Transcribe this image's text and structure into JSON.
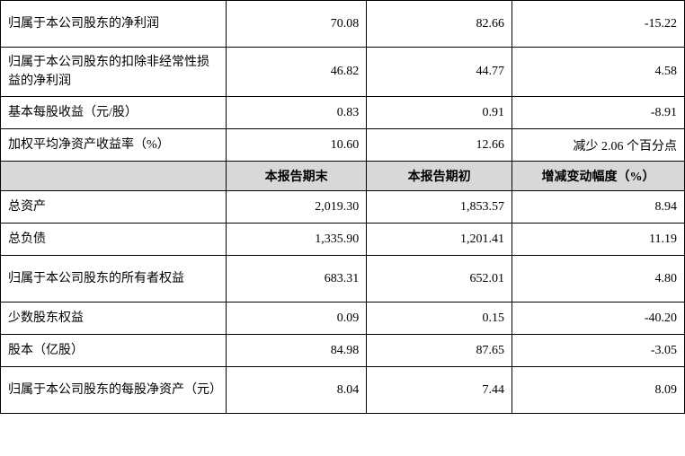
{
  "table": {
    "rows": [
      {
        "type": "data",
        "tall": true,
        "label": "归属于本公司股东的净利润",
        "c1": "70.08",
        "c2": "82.66",
        "c3": "-15.22"
      },
      {
        "type": "data",
        "tall": true,
        "label": "归属于本公司股东的扣除非经常性损益的净利润",
        "c1": "46.82",
        "c2": "44.77",
        "c3": "4.58"
      },
      {
        "type": "data",
        "tall": false,
        "label": "基本每股收益（元/股）",
        "c1": "0.83",
        "c2": "0.91",
        "c3": "-8.91"
      },
      {
        "type": "data",
        "tall": false,
        "label": "加权平均净资产收益率（%）",
        "c1": "10.60",
        "c2": "12.66",
        "c3": "减少 2.06 个百分点"
      },
      {
        "type": "header",
        "label": "",
        "c1": "本报告期末",
        "c2": "本报告期初",
        "c3": "增减变动幅度（%）"
      },
      {
        "type": "data",
        "tall": false,
        "label": "总资产",
        "c1": "2,019.30",
        "c2": "1,853.57",
        "c3": "8.94"
      },
      {
        "type": "data",
        "tall": false,
        "label": "总负债",
        "c1": "1,335.90",
        "c2": "1,201.41",
        "c3": "11.19"
      },
      {
        "type": "data",
        "tall": true,
        "label": "归属于本公司股东的所有者权益",
        "c1": "683.31",
        "c2": "652.01",
        "c3": "4.80"
      },
      {
        "type": "data",
        "tall": false,
        "label": "少数股东权益",
        "c1": "0.09",
        "c2": "0.15",
        "c3": "-40.20"
      },
      {
        "type": "data",
        "tall": false,
        "label": "股本（亿股）",
        "c1": "84.98",
        "c2": "87.65",
        "c3": "-3.05"
      },
      {
        "type": "data",
        "tall": true,
        "label": "归属于本公司股东的每股净资产（元）",
        "c1": "8.04",
        "c2": "7.44",
        "c3": "8.09"
      }
    ]
  }
}
